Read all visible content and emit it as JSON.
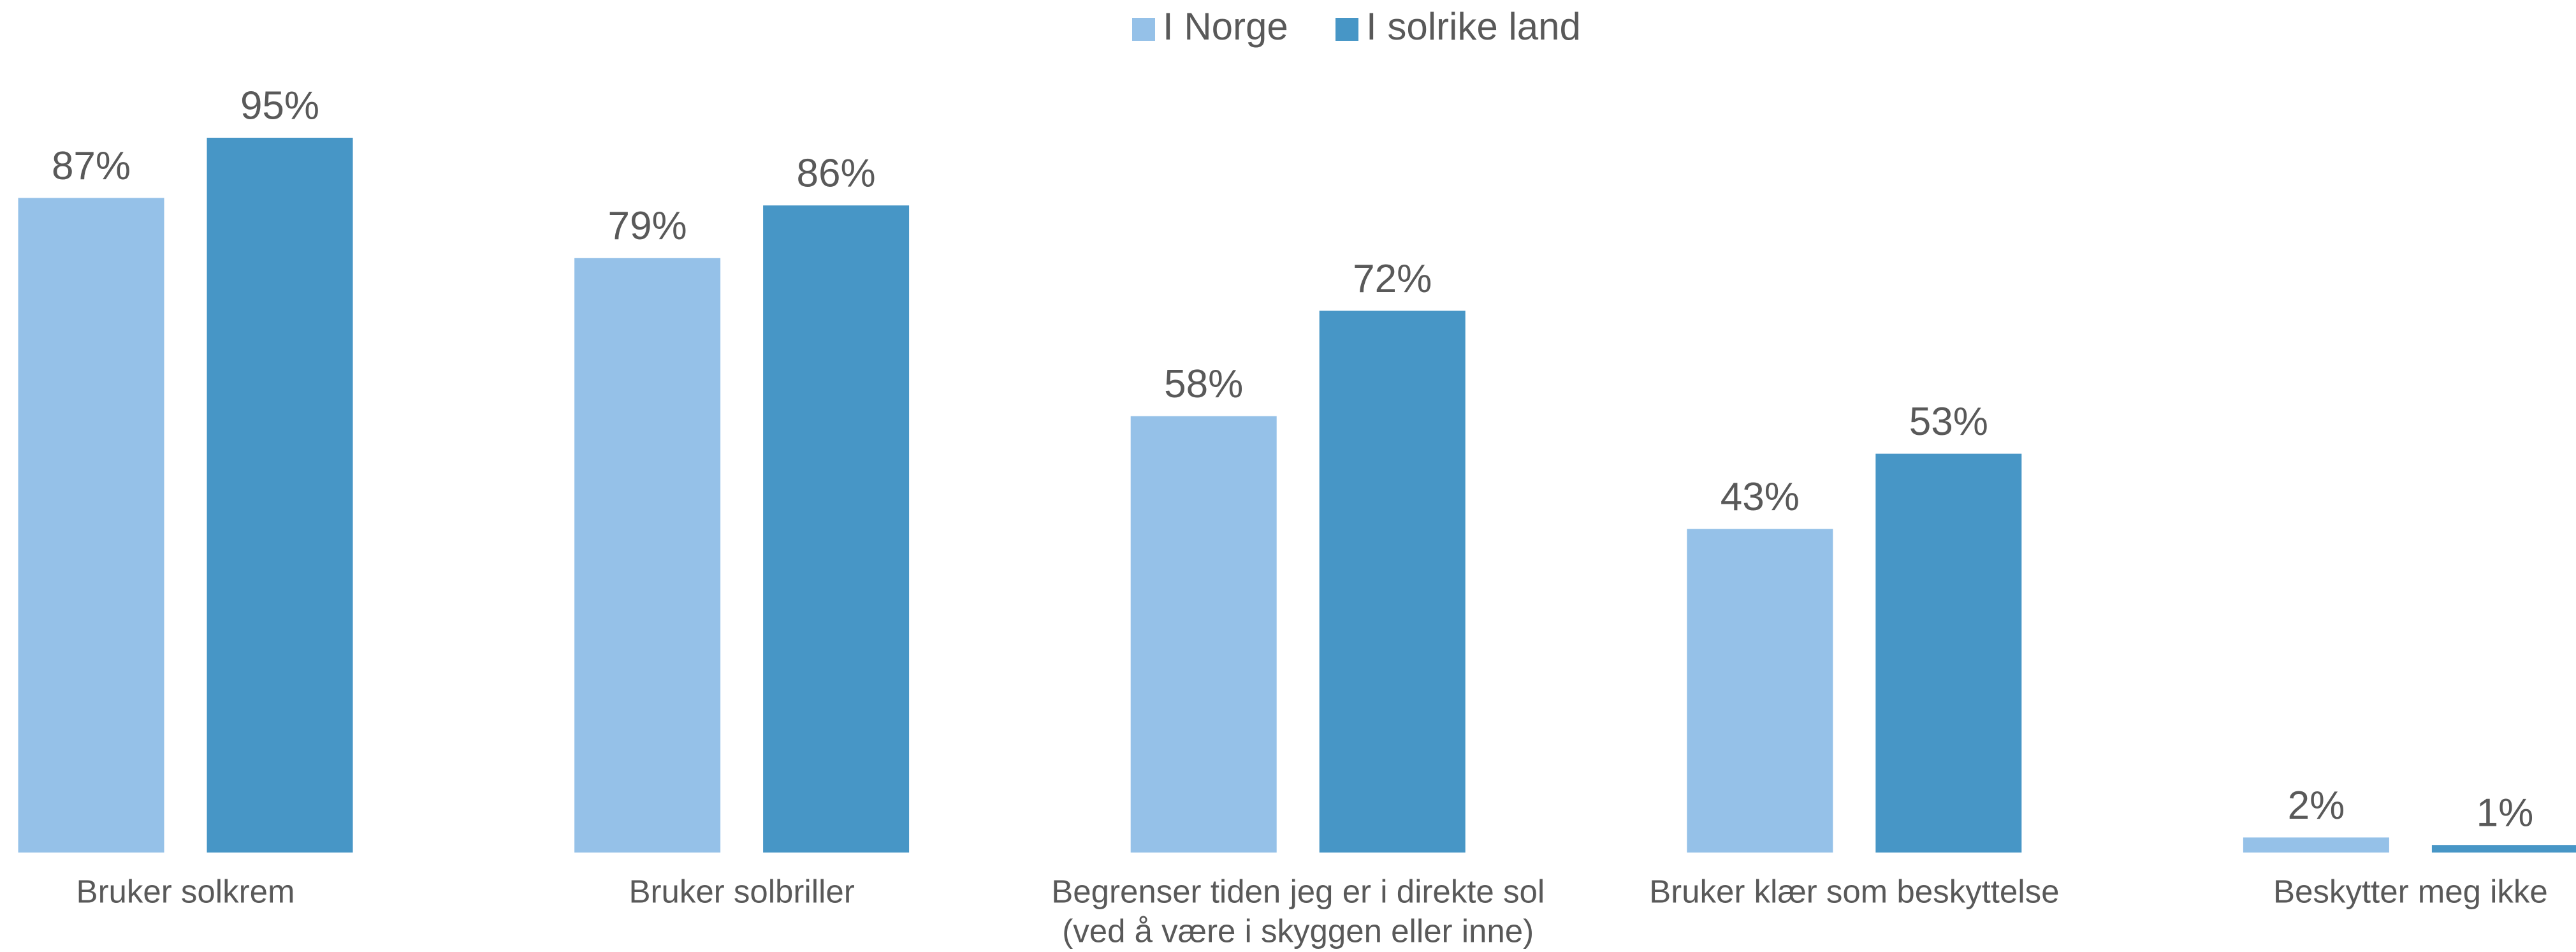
{
  "chart_data": {
    "type": "bar",
    "categories": [
      "Bruker solkrem",
      "Bruker solbriller",
      [
        "Begrenser tiden jeg er i direkte sol",
        "(ved å være i skyggen eller inne)"
      ],
      "Bruker klær som beskyttelse",
      "Beskytter meg ikke"
    ],
    "series": [
      {
        "name": "I Norge",
        "color": "#95c1e8",
        "values": [
          87,
          79,
          58,
          43,
          2
        ],
        "value_labels": [
          "87%",
          "79%",
          "58%",
          "43%",
          "2%"
        ]
      },
      {
        "name": "I solrike land",
        "color": "#4796c6",
        "values": [
          95,
          86,
          72,
          53,
          1
        ],
        "value_labels": [
          "95%",
          "86%",
          "72%",
          "53%",
          "1%"
        ]
      }
    ],
    "ylim": [
      0,
      100
    ],
    "legend": "top"
  }
}
